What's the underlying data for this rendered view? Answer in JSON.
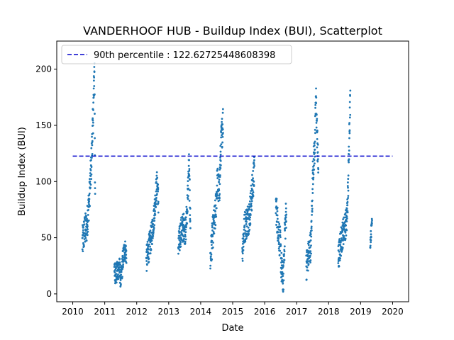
{
  "chart_data": {
    "type": "scatter",
    "title": "VANDERHOOF HUB - Buildup Index (BUI), Scatterplot",
    "xlabel": "Date",
    "ylabel": "Buildup Index (BUI)",
    "xlim": [
      2009.5,
      2020.5
    ],
    "ylim": [
      -7,
      225
    ],
    "x_ticks": [
      "2010",
      "2011",
      "2012",
      "2013",
      "2014",
      "2015",
      "2016",
      "2017",
      "2018",
      "2019",
      "2020"
    ],
    "y_ticks": [
      "0",
      "50",
      "100",
      "150",
      "200"
    ],
    "grid": false,
    "legend_position": "top-left",
    "colors": {
      "points": "#1f77b4",
      "threshold": "#0000cc"
    },
    "threshold": {
      "label": "90th percentile : 122.62725448608398",
      "value": 122.62725448608398,
      "x_range": [
        2010.0,
        2020.0
      ]
    },
    "season_profiles": [
      {
        "start": 2010.3,
        "end": 2010.7,
        "knots": [
          [
            0,
            45
          ],
          [
            0.15,
            55
          ],
          [
            0.35,
            60
          ],
          [
            0.55,
            85
          ],
          [
            0.7,
            115
          ],
          [
            0.85,
            160
          ],
          [
            0.95,
            205
          ],
          [
            1.0,
            75
          ]
        ],
        "spread": 15
      },
      {
        "start": 2011.3,
        "end": 2011.68,
        "knots": [
          [
            0,
            20
          ],
          [
            0.2,
            18
          ],
          [
            0.4,
            25
          ],
          [
            0.55,
            12
          ],
          [
            0.7,
            30
          ],
          [
            0.85,
            40
          ],
          [
            1.0,
            35
          ]
        ],
        "spread": 10
      },
      {
        "start": 2012.3,
        "end": 2012.68,
        "knots": [
          [
            0,
            30
          ],
          [
            0.2,
            40
          ],
          [
            0.4,
            50
          ],
          [
            0.6,
            65
          ],
          [
            0.8,
            90
          ],
          [
            0.9,
            100
          ],
          [
            1.0,
            80
          ]
        ],
        "spread": 12
      },
      {
        "start": 2013.3,
        "end": 2013.68,
        "knots": [
          [
            0,
            40
          ],
          [
            0.2,
            55
          ],
          [
            0.45,
            60
          ],
          [
            0.6,
            55
          ],
          [
            0.75,
            80
          ],
          [
            0.88,
            115
          ],
          [
            1.0,
            60
          ]
        ],
        "spread": 13
      },
      {
        "start": 2014.3,
        "end": 2014.7,
        "knots": [
          [
            0,
            30
          ],
          [
            0.2,
            55
          ],
          [
            0.4,
            70
          ],
          [
            0.55,
            100
          ],
          [
            0.7,
            90
          ],
          [
            0.85,
            135
          ],
          [
            1.0,
            155
          ]
        ],
        "spread": 15
      },
      {
        "start": 2015.3,
        "end": 2015.68,
        "knots": [
          [
            0,
            40
          ],
          [
            0.2,
            60
          ],
          [
            0.4,
            65
          ],
          [
            0.6,
            70
          ],
          [
            0.8,
            90
          ],
          [
            1.0,
            110
          ]
        ],
        "spread": 15
      },
      {
        "start": 2016.35,
        "end": 2016.68,
        "knots": [
          [
            0,
            80
          ],
          [
            0.2,
            60
          ],
          [
            0.4,
            45
          ],
          [
            0.55,
            20
          ],
          [
            0.7,
            10
          ],
          [
            0.85,
            55
          ],
          [
            1.0,
            75
          ]
        ],
        "spread": 15
      },
      {
        "start": 2017.3,
        "end": 2017.68,
        "knots": [
          [
            0,
            25
          ],
          [
            0.2,
            35
          ],
          [
            0.4,
            45
          ],
          [
            0.55,
            110
          ],
          [
            0.7,
            130
          ],
          [
            0.8,
            175
          ],
          [
            0.88,
            145
          ],
          [
            1.0,
            110
          ]
        ],
        "spread": 14
      },
      {
        "start": 2018.3,
        "end": 2018.68,
        "knots": [
          [
            0,
            30
          ],
          [
            0.2,
            45
          ],
          [
            0.4,
            55
          ],
          [
            0.55,
            60
          ],
          [
            0.7,
            65
          ],
          [
            0.82,
            95
          ],
          [
            0.92,
            150
          ],
          [
            1.0,
            175
          ]
        ],
        "spread": 13
      },
      {
        "start": 2019.3,
        "end": 2019.36,
        "knots": [
          [
            0,
            45
          ],
          [
            0.5,
            55
          ],
          [
            1.0,
            70
          ]
        ],
        "spread": 5
      }
    ]
  }
}
